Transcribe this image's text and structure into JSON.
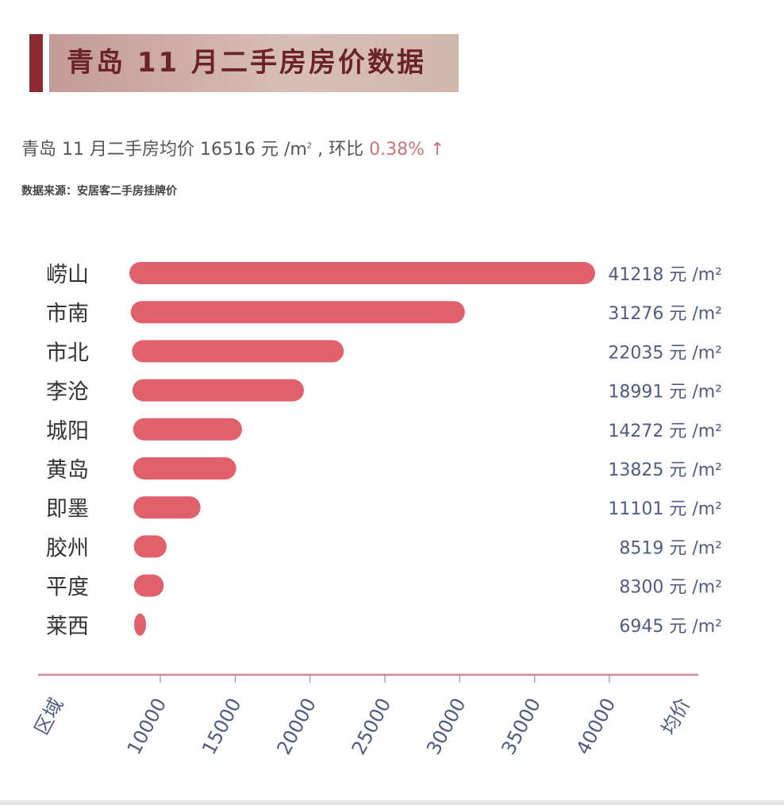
{
  "title": "青岛 11 月二手房房价数据",
  "subtitle": {
    "prefix": "青岛 11 月二手房均价 16516 元 /m",
    "sup": "2",
    "mid": " , 环比 ",
    "change": "0.38%",
    "arrow": " ↑"
  },
  "source": "数据来源：安居客二手房挂牌价",
  "colors": {
    "bar": "#e0616c",
    "label": "#4e5c82",
    "axis": "#d08a92",
    "title_accent": "#8e2b32"
  },
  "chart_data": {
    "type": "bar",
    "orientation": "horizontal",
    "categories": [
      "崂山",
      "市南",
      "市北",
      "李沧",
      "城阳",
      "黄岛",
      "即墨",
      "胶州",
      "平度",
      "莱西"
    ],
    "values": [
      41218,
      31276,
      22035,
      18991,
      14272,
      13825,
      11101,
      8519,
      8300,
      6945
    ],
    "value_labels": [
      "41218 元 /m²",
      "31276 元 /m²",
      "22035 元 /m²",
      "18991 元 /m²",
      "14272 元 /m²",
      "13825 元 /m²",
      "11101 元 /m²",
      "8519 元 /m²",
      "8300 元 /m²",
      "6945 元 /m²"
    ],
    "xticks": [
      "10000",
      "15000",
      "20000",
      "25000",
      "30000",
      "35000",
      "40000"
    ],
    "xlabel": "均价",
    "ylabel": "区域",
    "grid": false
  }
}
